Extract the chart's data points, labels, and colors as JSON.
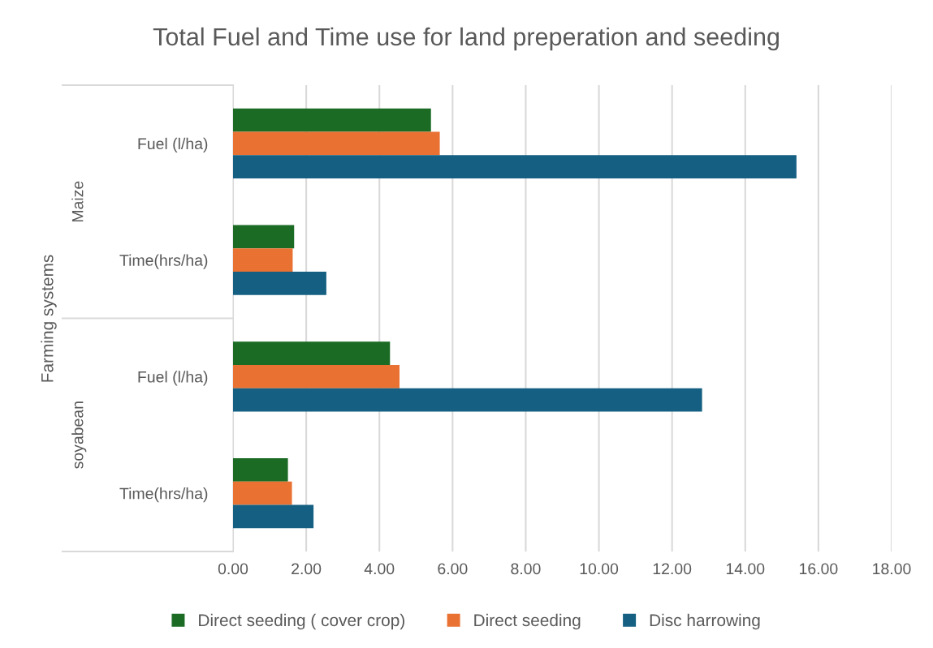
{
  "chart_data": {
    "type": "bar",
    "orientation": "horizontal",
    "title": "Total Fuel and Time use for land preperation and seeding",
    "ylabel": "Farming systems",
    "categories": [
      "Fuel (l/ha)",
      "Time(hrs/ha)",
      "Fuel (l/ha)",
      "Time(hrs/ha)"
    ],
    "annotations": [
      "Maize",
      "soyabean"
    ],
    "series": [
      {
        "name": "Direct seeding ( cover crop)",
        "color": "#1b6b25",
        "values": [
          5.41,
          1.67,
          4.29,
          1.5
        ]
      },
      {
        "name": "Direct seeding",
        "color": "#e97132",
        "values": [
          5.65,
          1.63,
          4.55,
          1.61
        ]
      },
      {
        "name": "Disc harrowing",
        "color": "#156082",
        "values": [
          15.4,
          2.55,
          12.82,
          2.2
        ]
      }
    ],
    "xlim": [
      0,
      18
    ],
    "xticks": [
      {
        "value": 0,
        "label": "0.00"
      },
      {
        "value": 2,
        "label": "2.00"
      },
      {
        "value": 4,
        "label": "4.00"
      },
      {
        "value": 6,
        "label": "6.00"
      },
      {
        "value": 8,
        "label": "8.00"
      },
      {
        "value": 10,
        "label": "10.00"
      },
      {
        "value": 12,
        "label": "12.00"
      },
      {
        "value": 14,
        "label": "14.00"
      },
      {
        "value": 16,
        "label": "16.00"
      },
      {
        "value": 18,
        "label": "18.00"
      }
    ],
    "grid": "x",
    "legend": "bottom"
  }
}
